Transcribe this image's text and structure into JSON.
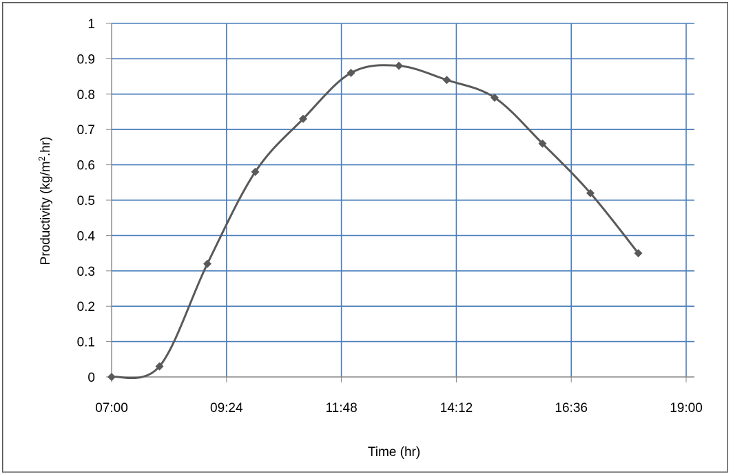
{
  "chart_data": {
    "type": "line",
    "title": "",
    "xlabel": "Time (hr)",
    "ylabel_parts": [
      "Productivity (kg/m",
      "2",
      ".hr)"
    ],
    "x_ticks": [
      "07:00",
      "09:24",
      "11:48",
      "14:12",
      "16:36",
      "19:00"
    ],
    "y_ticks": [
      "0",
      "0.1",
      "0.2",
      "0.3",
      "0.4",
      "0.5",
      "0.6",
      "0.7",
      "0.8",
      "0.9",
      "1"
    ],
    "xlim": [
      "07:00",
      "19:00"
    ],
    "ylim": [
      0,
      1
    ],
    "grid": true,
    "legend": "none",
    "colors": {
      "grid": "#4a7ebb",
      "line": "#595959",
      "marker": "#595959",
      "axis": "#868686"
    },
    "series": [
      {
        "smooth": true,
        "marker": "diamond",
        "x": [
          "07:00",
          "08:00",
          "09:00",
          "10:00",
          "11:00",
          "12:00",
          "13:00",
          "14:00",
          "15:00",
          "16:00",
          "17:00",
          "18:00"
        ],
        "y": [
          0,
          0.03,
          0.32,
          0.58,
          0.73,
          0.86,
          0.88,
          0.84,
          0.79,
          0.66,
          0.52,
          0.35
        ]
      }
    ]
  }
}
